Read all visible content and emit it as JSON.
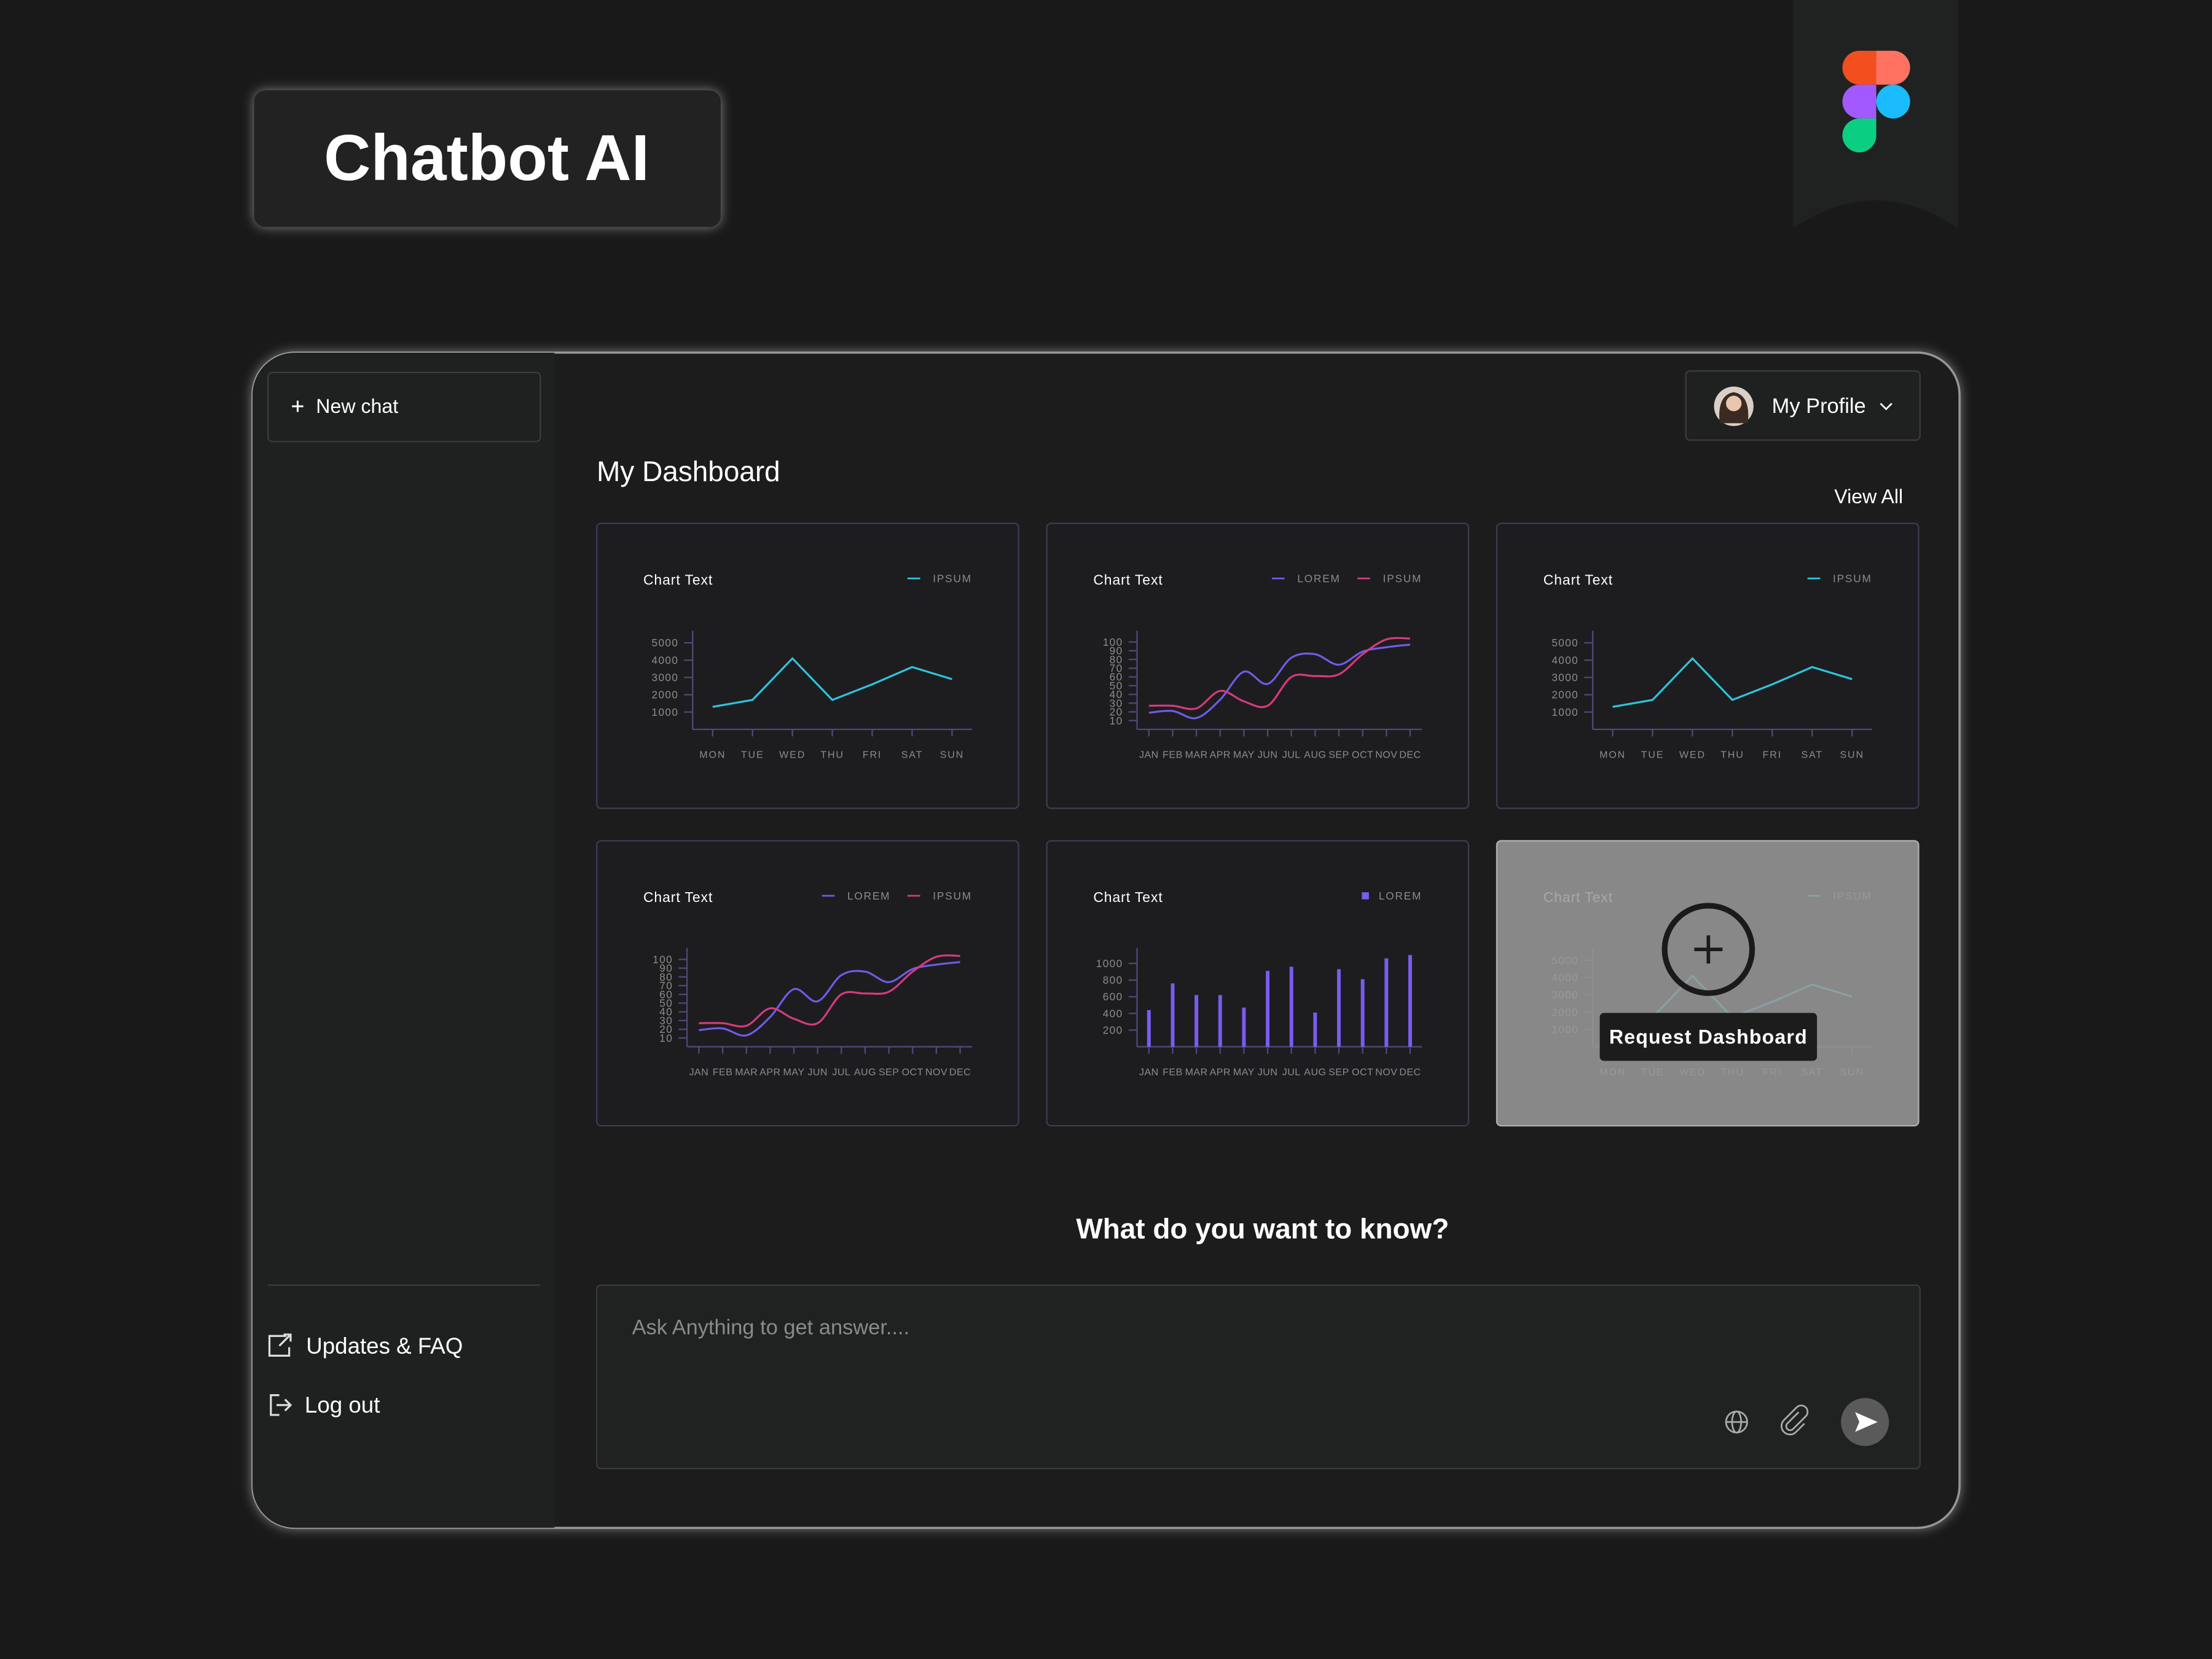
{
  "header": {
    "title": "Chatbot AI"
  },
  "sidebar": {
    "new_chat": "New chat",
    "links": [
      "Updates & FAQ",
      "Log out"
    ]
  },
  "profile": {
    "label": "My Profile"
  },
  "dashboard": {
    "title": "My Dashboard",
    "view_all": "View All",
    "request_button": "Request Dashboard"
  },
  "chart_data": [
    {
      "type": "line",
      "title": "Chart Text",
      "categories": [
        "MON",
        "TUE",
        "WED",
        "THU",
        "FRI",
        "SAT",
        "SUN"
      ],
      "series": [
        {
          "name": "IPSUM",
          "color": "#2ec4dc",
          "values": [
            1300,
            1700,
            4100,
            1700,
            2600,
            3600,
            2900
          ]
        }
      ],
      "ylim": [
        0,
        5300
      ],
      "yticks": [
        1000,
        2000,
        3000,
        4000,
        5000
      ]
    },
    {
      "type": "line",
      "title": "Chart Text",
      "smooth": true,
      "categories": [
        "JAN",
        "FEB",
        "MAR",
        "APR",
        "MAY",
        "JUN",
        "JUL",
        "AUG",
        "SEP",
        "OCT",
        "NOV",
        "DEC"
      ],
      "series": [
        {
          "name": "LOREM",
          "color": "#6d5ce8",
          "values": [
            19,
            21,
            13,
            34,
            66,
            52,
            82,
            86,
            74,
            89,
            94,
            97
          ]
        },
        {
          "name": "IPSUM",
          "color": "#d63a7e",
          "values": [
            27,
            27,
            24,
            44,
            32,
            27,
            60,
            61,
            63,
            86,
            103,
            104
          ]
        }
      ],
      "ylim": [
        0,
        105
      ],
      "yticks": [
        10,
        20,
        30,
        40,
        50,
        60,
        70,
        80,
        90,
        100
      ]
    },
    {
      "type": "line",
      "title": "Chart Text",
      "categories": [
        "MON",
        "TUE",
        "WED",
        "THU",
        "FRI",
        "SAT",
        "SUN"
      ],
      "series": [
        {
          "name": "IPSUM",
          "color": "#2ec4dc",
          "values": [
            1300,
            1700,
            4100,
            1700,
            2600,
            3600,
            2900
          ]
        }
      ],
      "ylim": [
        0,
        5300
      ],
      "yticks": [
        1000,
        2000,
        3000,
        4000,
        5000
      ]
    },
    {
      "type": "line",
      "title": "Chart Text",
      "smooth": true,
      "categories": [
        "JAN",
        "FEB",
        "MAR",
        "APR",
        "MAY",
        "JUN",
        "JUL",
        "AUG",
        "SEP",
        "OCT",
        "NOV",
        "DEC"
      ],
      "series": [
        {
          "name": "LOREM",
          "color": "#6d5ce8",
          "values": [
            19,
            21,
            13,
            34,
            66,
            52,
            82,
            86,
            74,
            89,
            94,
            97
          ]
        },
        {
          "name": "IPSUM",
          "color": "#d63a7e",
          "values": [
            27,
            27,
            24,
            44,
            32,
            27,
            60,
            61,
            63,
            86,
            103,
            104
          ]
        }
      ],
      "ylim": [
        0,
        105
      ],
      "yticks": [
        10,
        20,
        30,
        40,
        50,
        60,
        70,
        80,
        90,
        100
      ]
    },
    {
      "type": "bar",
      "title": "Chart Text",
      "categories": [
        "JAN",
        "FEB",
        "MAR",
        "APR",
        "MAY",
        "JUN",
        "JUL",
        "AUG",
        "SEP",
        "OCT",
        "NOV",
        "DEC"
      ],
      "series": [
        {
          "name": "LOREM",
          "color": "#7a5cf0",
          "values": [
            440,
            760,
            620,
            620,
            470,
            910,
            960,
            410,
            930,
            810,
            1060,
            1100
          ]
        }
      ],
      "ylim": [
        0,
        1100
      ],
      "yticks": [
        200,
        400,
        600,
        800,
        1000
      ]
    },
    {
      "type": "line",
      "title": "Chart Text",
      "categories": [
        "MON",
        "TUE",
        "WED",
        "THU",
        "FRI",
        "SAT",
        "SUN"
      ],
      "series": [
        {
          "name": "IPSUM",
          "color": "#2ec4dc",
          "values": [
            1300,
            1700,
            4100,
            1700,
            2600,
            3600,
            2900
          ]
        }
      ],
      "ylim": [
        0,
        5300
      ],
      "yticks": [
        1000,
        2000,
        3000,
        4000,
        5000
      ]
    }
  ],
  "prompt": {
    "question": "What do you want to know?",
    "placeholder": "Ask Anything to get answer...."
  }
}
